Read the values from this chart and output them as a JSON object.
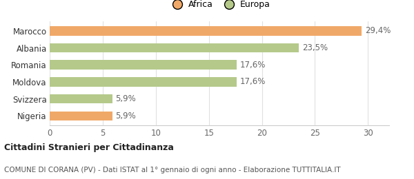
{
  "categories": [
    "Nigeria",
    "Svizzera",
    "Moldova",
    "Romania",
    "Albania",
    "Marocco"
  ],
  "values": [
    5.9,
    5.9,
    17.6,
    17.6,
    23.5,
    29.4
  ],
  "labels": [
    "5,9%",
    "5,9%",
    "17,6%",
    "17,6%",
    "23,5%",
    "29,4%"
  ],
  "colors": [
    "#f0a868",
    "#b5c98a",
    "#b5c98a",
    "#b5c98a",
    "#b5c98a",
    "#f0a868"
  ],
  "legend_africa_color": "#f0a868",
  "legend_europa_color": "#b5c98a",
  "xlim": [
    0,
    32
  ],
  "xticks": [
    0,
    5,
    10,
    15,
    20,
    25,
    30
  ],
  "title_bold": "Cittadini Stranieri per Cittadinanza",
  "subtitle": "COMUNE DI CORANA (PV) - Dati ISTAT al 1° gennaio di ogni anno - Elaborazione TUTTITALIA.IT",
  "bg_color": "#ffffff",
  "bar_height": 0.55,
  "label_fontsize": 8.5,
  "tick_fontsize": 8.5,
  "category_fontsize": 8.5
}
